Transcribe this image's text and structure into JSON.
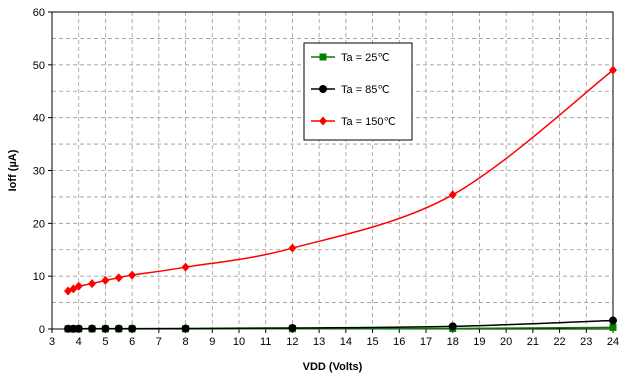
{
  "chart_data": {
    "type": "line",
    "xlabel": "VDD (Volts)",
    "ylabel": "Ioff (µA)",
    "xlim": [
      3,
      24
    ],
    "ylim": [
      0,
      60
    ],
    "x_ticks": [
      3,
      4,
      5,
      6,
      7,
      8,
      9,
      10,
      11,
      12,
      13,
      14,
      15,
      16,
      17,
      18,
      19,
      20,
      21,
      22,
      23,
      24
    ],
    "y_ticks": [
      0,
      10,
      20,
      30,
      40,
      50,
      60
    ],
    "grid": true,
    "legend_position": "top-center",
    "series": [
      {
        "name": "Ta = 25℃",
        "color": "#008000",
        "marker": "square",
        "x": [
          3.6,
          3.8,
          4,
          4.5,
          5,
          5.5,
          6,
          8,
          12,
          18,
          24
        ],
        "y": [
          0.02,
          0.02,
          0.02,
          0.02,
          0.02,
          0.02,
          0.03,
          0.03,
          0.04,
          0.1,
          0.3
        ],
        "smooth": false
      },
      {
        "name": "Ta = 85℃",
        "color": "#000000",
        "marker": "circle",
        "x": [
          3.6,
          3.8,
          4,
          4.5,
          5,
          5.5,
          6,
          8,
          12,
          18,
          24
        ],
        "y": [
          0.05,
          0.05,
          0.06,
          0.06,
          0.07,
          0.07,
          0.08,
          0.1,
          0.2,
          0.5,
          1.6
        ],
        "smooth": true
      },
      {
        "name": "Ta = 150℃",
        "color": "#ff0000",
        "marker": "diamond",
        "x": [
          3.6,
          3.8,
          4,
          4.5,
          5,
          5.5,
          6,
          8,
          12,
          18,
          24
        ],
        "y": [
          7.2,
          7.6,
          8.1,
          8.6,
          9.2,
          9.7,
          10.2,
          11.7,
          15.3,
          25.4,
          49
        ],
        "smooth": true
      }
    ]
  }
}
